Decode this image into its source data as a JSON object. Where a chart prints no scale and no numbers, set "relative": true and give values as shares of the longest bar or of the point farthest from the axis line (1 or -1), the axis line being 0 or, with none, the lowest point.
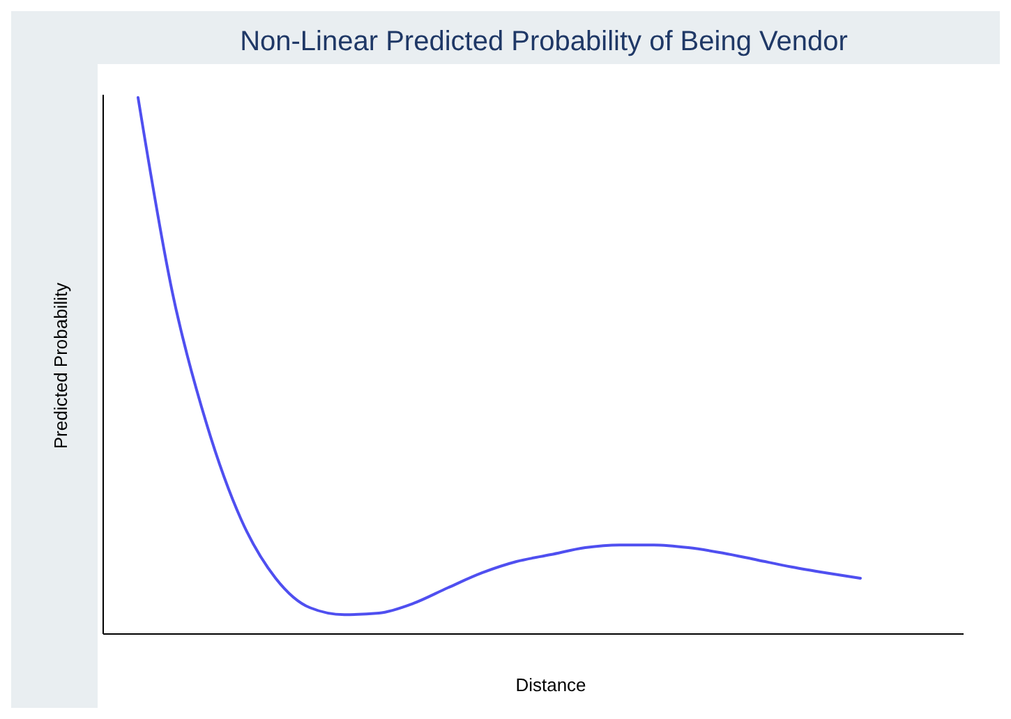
{
  "chart_data": {
    "type": "line",
    "title": "Non-Linear Predicted Probability of Being Vendor",
    "xlabel": "Distance",
    "ylabel": "Predicted Probability",
    "relative": true,
    "categories": [
      null,
      null,
      null,
      null,
      null,
      null,
      null,
      null,
      null,
      null,
      null,
      null,
      null,
      null,
      null,
      null,
      null,
      null,
      null,
      null,
      null,
      null,
      null,
      null,
      null
    ],
    "series": [
      {
        "color": "#4f4ff0",
        "values": [
          1,
          0.636,
          0.39,
          0.213,
          0.104,
          0.049,
          0.036,
          0.039,
          0.057,
          0.086,
          0.114,
          0.135,
          0.148,
          0.161,
          0.166,
          0.166,
          0.161,
          0.151,
          0.138,
          0.125,
          0.114,
          0.104,
          null,
          null,
          null
        ]
      }
    ],
    "marker": "none",
    "line_style": "solid"
  }
}
